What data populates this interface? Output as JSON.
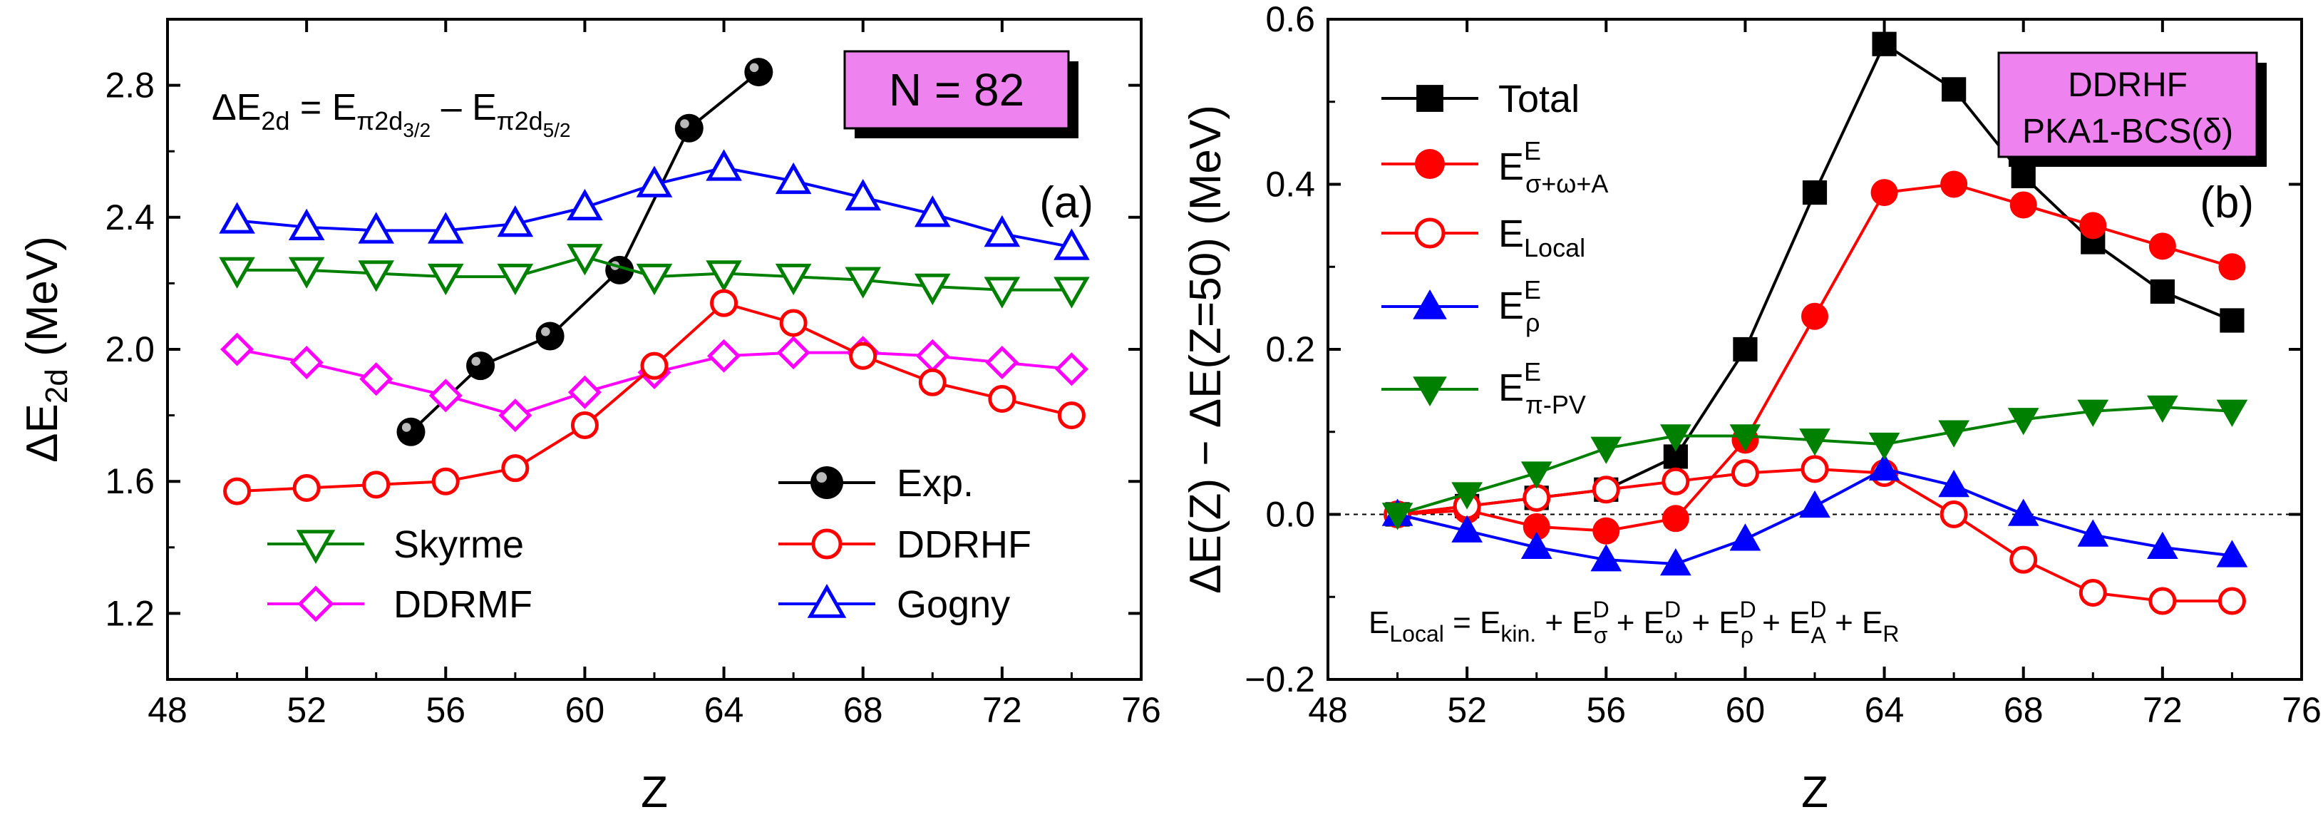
{
  "colors": {
    "black": "#000000",
    "red": "#ff0000",
    "blue": "#0000ff",
    "green": "#008000",
    "magenta": "#ff00ff",
    "label_box": "#ee82ee"
  },
  "chart_data": [
    {
      "id": "a",
      "type": "line",
      "panel_label": "(a)",
      "xlabel": "Z",
      "ylabel": "ΔE",
      "ylabel_sub": "2d",
      "ylabel_unit": " (MeV)",
      "xlim": [
        48,
        76
      ],
      "ylim": [
        1.0,
        3.0
      ],
      "xticks": [
        48,
        52,
        56,
        60,
        64,
        68,
        72,
        76
      ],
      "yticks": [
        1.2,
        1.6,
        2.0,
        2.4,
        2.8
      ],
      "ytick_labels": [
        "1.2",
        "1.6",
        "2.0",
        "2.4",
        "2.8"
      ],
      "formula": {
        "lhs": "ΔE",
        "lhs_sub": "2d",
        "eq": " = E",
        "t1_sub": "π2d",
        "t1_subsub": "3/2",
        "minus": " – E",
        "t2_sub": "π2d",
        "t2_subsub": "5/2"
      },
      "badge": "N = 82",
      "series": [
        {
          "name": "Exp.",
          "color": "#000000",
          "marker": "ball",
          "x": [
            55,
            57,
            59,
            61,
            63,
            65
          ],
          "y": [
            1.75,
            1.95,
            2.04,
            2.24,
            2.67,
            2.84
          ]
        },
        {
          "name": "Gogny",
          "color": "#0000ff",
          "marker": "triangle-up",
          "x": [
            50,
            52,
            54,
            56,
            58,
            60,
            62,
            64,
            66,
            68,
            70,
            72,
            74
          ],
          "y": [
            2.39,
            2.37,
            2.36,
            2.36,
            2.38,
            2.43,
            2.5,
            2.55,
            2.51,
            2.46,
            2.41,
            2.35,
            2.31
          ]
        },
        {
          "name": "Skyrme",
          "color": "#008000",
          "marker": "triangle-down",
          "x": [
            50,
            52,
            54,
            56,
            58,
            60,
            62,
            64,
            66,
            68,
            70,
            72,
            74
          ],
          "y": [
            2.24,
            2.24,
            2.23,
            2.22,
            2.22,
            2.28,
            2.22,
            2.23,
            2.22,
            2.21,
            2.19,
            2.18,
            2.18
          ]
        },
        {
          "name": "DDRMF",
          "color": "#ff00ff",
          "marker": "diamond",
          "x": [
            50,
            52,
            54,
            56,
            58,
            60,
            62,
            64,
            66,
            68,
            70,
            72,
            74
          ],
          "y": [
            2.0,
            1.96,
            1.91,
            1.86,
            1.8,
            1.87,
            1.93,
            1.98,
            1.99,
            1.99,
            1.98,
            1.96,
            1.94
          ]
        },
        {
          "name": "DDRHF",
          "color": "#ff0000",
          "marker": "circle-open",
          "x": [
            50,
            52,
            54,
            56,
            58,
            60,
            62,
            64,
            66,
            68,
            70,
            72,
            74
          ],
          "y": [
            1.57,
            1.58,
            1.59,
            1.6,
            1.64,
            1.77,
            1.95,
            2.14,
            2.08,
            1.98,
            1.9,
            1.85,
            1.8
          ]
        }
      ],
      "legend": {
        "exp": "Exp.",
        "skyrme": "Skyrme",
        "ddrhf": "DDRHF",
        "ddrmf": "DDRMF",
        "gogny": "Gogny"
      }
    },
    {
      "id": "b",
      "type": "line",
      "panel_label": "(b)",
      "xlabel": "Z",
      "ylabel": "ΔE(Z) − ΔE(Z=50)  (MeV)",
      "xlim": [
        48,
        76
      ],
      "ylim": [
        -0.2,
        0.6
      ],
      "xticks": [
        48,
        52,
        56,
        60,
        64,
        68,
        72,
        76
      ],
      "yticks": [
        -0.2,
        0.0,
        0.2,
        0.4,
        0.6
      ],
      "ytick_labels": [
        "−0.2",
        "0.0",
        "0.2",
        "0.4",
        "0.6"
      ],
      "badge_line1": "DDRHF",
      "badge_line2": "PKA1-BCS(δ)",
      "series": [
        {
          "name": "Total",
          "color": "#000000",
          "marker": "square-filled",
          "x": [
            50,
            52,
            54,
            56,
            58,
            60,
            62,
            64,
            66,
            68,
            70,
            72,
            74
          ],
          "y": [
            0.0,
            0.01,
            0.02,
            0.03,
            0.07,
            0.2,
            0.39,
            0.57,
            0.515,
            0.41,
            0.33,
            0.27,
            0.235
          ]
        },
        {
          "name": "E^E_{σ+ω+A}",
          "color": "#ff0000",
          "marker": "circle-filled",
          "x": [
            50,
            52,
            54,
            56,
            58,
            60,
            62,
            64,
            66,
            68,
            70,
            72,
            74
          ],
          "y": [
            0.0,
            0.005,
            -0.015,
            -0.02,
            -0.005,
            0.09,
            0.24,
            0.39,
            0.4,
            0.375,
            0.35,
            0.325,
            0.3
          ]
        },
        {
          "name": "E_Local",
          "color": "#ff0000",
          "marker": "circle-open",
          "x": [
            50,
            52,
            54,
            56,
            58,
            60,
            62,
            64,
            66,
            68,
            70,
            72,
            74
          ],
          "y": [
            0.0,
            0.01,
            0.02,
            0.03,
            0.04,
            0.05,
            0.055,
            0.05,
            0.0,
            -0.055,
            -0.095,
            -0.105,
            -0.105
          ]
        },
        {
          "name": "E^E_ρ",
          "color": "#0000ff",
          "marker": "triangle-up-filled",
          "x": [
            50,
            52,
            54,
            56,
            58,
            60,
            62,
            64,
            66,
            68,
            70,
            72,
            74
          ],
          "y": [
            0.0,
            -0.02,
            -0.04,
            -0.055,
            -0.06,
            -0.03,
            0.01,
            0.055,
            0.035,
            0.0,
            -0.025,
            -0.04,
            -0.05
          ]
        },
        {
          "name": "E^E_{π-PV}",
          "color": "#008000",
          "marker": "triangle-down-filled",
          "x": [
            50,
            52,
            54,
            56,
            58,
            60,
            62,
            64,
            66,
            68,
            70,
            72,
            74
          ],
          "y": [
            0.0,
            0.025,
            0.05,
            0.08,
            0.095,
            0.095,
            0.09,
            0.085,
            0.1,
            0.115,
            0.125,
            0.13,
            0.125
          ]
        }
      ],
      "legend": {
        "total": "Total",
        "sigma_main": "E",
        "sigma_sup": "E",
        "sigma_sub": "σ+ω+A",
        "local_main": "E",
        "local_sub": "Local",
        "rho_main": "E",
        "rho_sup": "E",
        "rho_sub": "ρ",
        "pipv_main": "E",
        "pipv_sup": "E",
        "pipv_sub": "π-PV"
      },
      "formula": {
        "lhs": "E",
        "lhs_sub": "Local",
        "eq": " = E",
        "kin_sub": "kin.",
        "plus1": " + E",
        "sig_sup": "D",
        "sig_sub": "σ",
        "plus2": " + E",
        "om_sup": "D",
        "om_sub": "ω",
        "plus3": " + E",
        "rho_sup": "D",
        "rho_sub": "ρ",
        "plus4": " + E",
        "a_sup": "D",
        "a_sub": "A",
        "plus5": " + E",
        "r_sub": "R"
      }
    }
  ]
}
